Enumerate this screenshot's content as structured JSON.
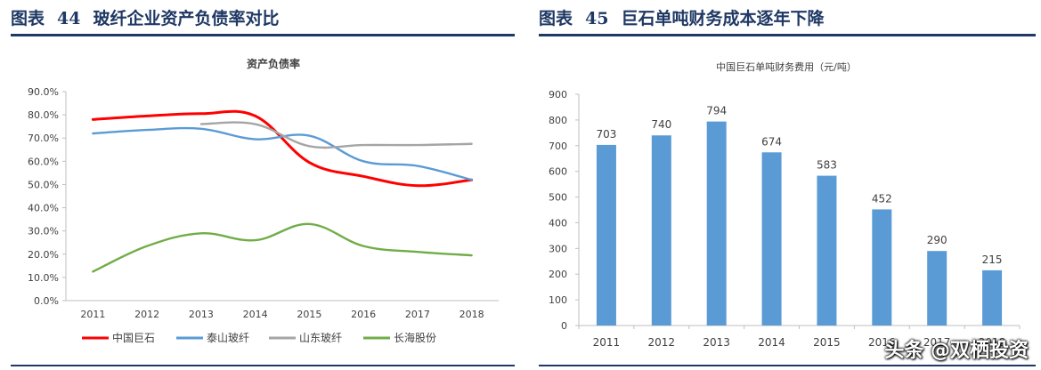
{
  "left": {
    "fig_label": "图表",
    "fig_number": "44",
    "fig_title": "玻纤企业资产负债率对比"
  },
  "right": {
    "fig_label": "图表",
    "fig_number": "45",
    "fig_title": "巨石单吨财务成本逐年下降"
  },
  "watermark": "头条 @双栖投资",
  "chart_data": [
    {
      "type": "line",
      "title": "资产负债率",
      "x": [
        "2011",
        "2012",
        "2013",
        "2014",
        "2015",
        "2016",
        "2017",
        "2018"
      ],
      "ylim": [
        0,
        90
      ],
      "yticks": [
        "0.0%",
        "10.0%",
        "20.0%",
        "30.0%",
        "40.0%",
        "50.0%",
        "60.0%",
        "70.0%",
        "80.0%",
        "90.0%"
      ],
      "legend_position": "bottom",
      "series": [
        {
          "name": "中国巨石",
          "color": "#ff0000",
          "values": [
            78,
            79.5,
            80.5,
            79.5,
            59.5,
            53.5,
            49.5,
            52
          ]
        },
        {
          "name": "泰山玻纤",
          "color": "#5b9bd5",
          "values": [
            72,
            73.5,
            74,
            69.5,
            71,
            60,
            58,
            52
          ]
        },
        {
          "name": "山东玻纤",
          "color": "#a5a5a5",
          "values": [
            null,
            null,
            76,
            76,
            66.5,
            67,
            67,
            67.5
          ]
        },
        {
          "name": "长海股份",
          "color": "#70ad47",
          "values": [
            12.5,
            23.5,
            29,
            26,
            33,
            23.5,
            21,
            19.5
          ]
        }
      ]
    },
    {
      "type": "bar",
      "title": "中国巨石单吨财务费用（元/吨）",
      "categories": [
        "2011",
        "2012",
        "2013",
        "2014",
        "2015",
        "2016",
        "2017",
        "2018"
      ],
      "values": [
        703,
        740,
        794,
        674,
        583,
        452,
        290,
        215
      ],
      "ylim": [
        0,
        900
      ],
      "yticks": [
        "0",
        "100",
        "200",
        "300",
        "400",
        "500",
        "600",
        "700",
        "800",
        "900"
      ],
      "color": "#5b9bd5"
    }
  ]
}
